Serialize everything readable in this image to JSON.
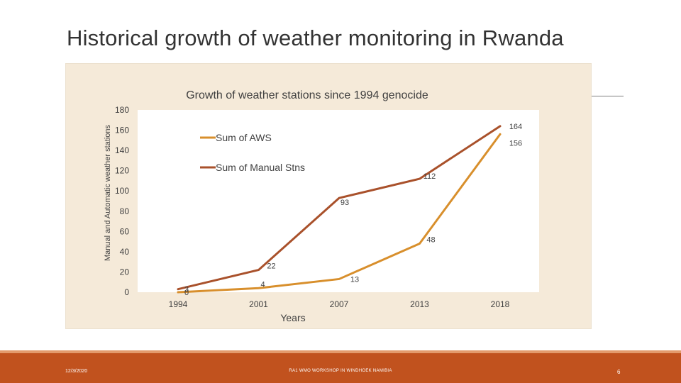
{
  "slide": {
    "title": "Historical growth of weather monitoring in Rwanda",
    "footer_date": "12/3/2020",
    "footer_center": "RA1 WMO WORKSHOP IN WINDHOEK NAMIBIA",
    "page_number": "6"
  },
  "chart_data": {
    "type": "line",
    "title": "Growth of weather stations since 1994 genocide",
    "xlabel": "Years",
    "ylabel": "Manual and Automatic weather stations",
    "categories": [
      "1994",
      "2001",
      "2007",
      "2013",
      "2018"
    ],
    "ylim": [
      0,
      180
    ],
    "yticks": [
      0,
      20,
      40,
      60,
      80,
      100,
      120,
      140,
      160,
      180
    ],
    "series": [
      {
        "name": "Sum of AWS",
        "values": [
          0,
          4,
          13,
          48,
          156
        ],
        "color": "#d88f2c",
        "labels": [
          "0",
          "4",
          "13",
          "48",
          "156"
        ]
      },
      {
        "name": "Sum of Manual Stns",
        "values": [
          3,
          22,
          93,
          112,
          164
        ],
        "color": "#a9512b",
        "labels": [
          "3",
          "22",
          "93",
          "112",
          "164"
        ]
      }
    ],
    "legend_position": "upper-left inside plot",
    "grid": false
  },
  "colors": {
    "chart_background": "#f5ead9",
    "footer": "#c1521e"
  }
}
